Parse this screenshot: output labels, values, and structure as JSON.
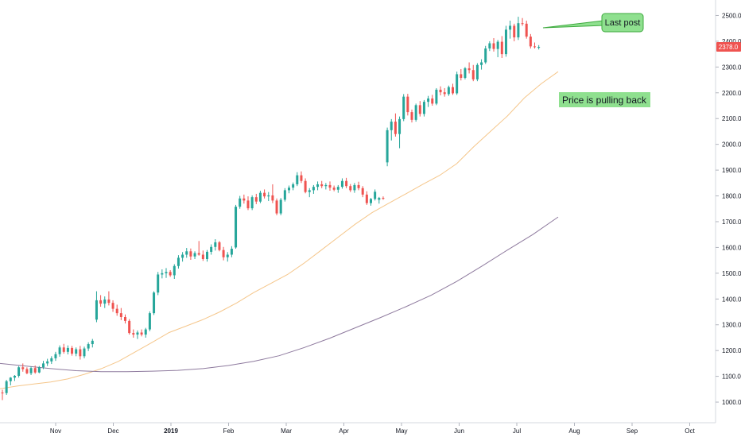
{
  "chart_data": {
    "type": "candlestick",
    "colors": {
      "up": "#26a69a",
      "down": "#ef5350",
      "ma_fast": "#f5c68a",
      "ma_slow": "#8e7a9e",
      "annotation_fill": "#8fe08f",
      "annotation_border": "#3faa3f",
      "price_badge": "#ef5350"
    },
    "ylim": [
      920,
      2560
    ],
    "y_ticks": [
      1000,
      1100,
      1200,
      1300,
      1400,
      1500,
      1600,
      1700,
      1800,
      1900,
      2000,
      2100,
      2200,
      2300,
      2400,
      2500
    ],
    "x_ticks": [
      "Nov",
      "Dec",
      "2019",
      "Feb",
      "Mar",
      "Apr",
      "May",
      "Jun",
      "Jul",
      "Aug",
      "Sep",
      "Oct"
    ],
    "current_price": "2378.0",
    "series": [
      {
        "kind": "candles",
        "x_start": "2018-10-18",
        "values": [
          [
            1037,
            1048,
            1008,
            1035
          ],
          [
            1035,
            1086,
            1028,
            1081
          ],
          [
            1081,
            1097,
            1065,
            1095
          ],
          [
            1095,
            1105,
            1082,
            1102
          ],
          [
            1102,
            1140,
            1095,
            1135
          ],
          [
            1135,
            1150,
            1118,
            1128
          ],
          [
            1128,
            1135,
            1108,
            1112
          ],
          [
            1112,
            1138,
            1105,
            1132
          ],
          [
            1132,
            1142,
            1110,
            1115
          ],
          [
            1115,
            1140,
            1112,
            1135
          ],
          [
            1135,
            1160,
            1128,
            1150
          ],
          [
            1150,
            1168,
            1140,
            1158
          ],
          [
            1158,
            1178,
            1148,
            1170
          ],
          [
            1170,
            1195,
            1160,
            1186
          ],
          [
            1186,
            1220,
            1176,
            1212
          ],
          [
            1212,
            1226,
            1188,
            1195
          ],
          [
            1195,
            1220,
            1185,
            1210
          ],
          [
            1210,
            1218,
            1180,
            1188
          ],
          [
            1188,
            1212,
            1178,
            1205
          ],
          [
            1205,
            1218,
            1165,
            1178
          ],
          [
            1178,
            1215,
            1170,
            1208
          ],
          [
            1208,
            1232,
            1198,
            1225
          ],
          [
            1225,
            1245,
            1212,
            1238
          ],
          [
            1320,
            1430,
            1310,
            1395
          ],
          [
            1395,
            1415,
            1370,
            1382
          ],
          [
            1382,
            1410,
            1365,
            1398
          ],
          [
            1398,
            1430,
            1375,
            1385
          ],
          [
            1385,
            1395,
            1350,
            1362
          ],
          [
            1362,
            1378,
            1335,
            1345
          ],
          [
            1345,
            1365,
            1318,
            1330
          ],
          [
            1330,
            1340,
            1305,
            1315
          ],
          [
            1315,
            1322,
            1262,
            1268
          ],
          [
            1268,
            1282,
            1250,
            1262
          ],
          [
            1262,
            1278,
            1245,
            1270
          ],
          [
            1270,
            1282,
            1255,
            1262
          ],
          [
            1262,
            1288,
            1250,
            1282
          ],
          [
            1282,
            1352,
            1275,
            1345
          ],
          [
            1345,
            1430,
            1338,
            1425
          ],
          [
            1425,
            1505,
            1415,
            1495
          ],
          [
            1495,
            1515,
            1480,
            1500
          ],
          [
            1500,
            1520,
            1482,
            1505
          ],
          [
            1505,
            1512,
            1486,
            1492
          ],
          [
            1492,
            1535,
            1478,
            1528
          ],
          [
            1528,
            1570,
            1518,
            1560
          ],
          [
            1560,
            1582,
            1545,
            1572
          ],
          [
            1572,
            1598,
            1560,
            1585
          ],
          [
            1585,
            1596,
            1552,
            1565
          ],
          [
            1565,
            1585,
            1555,
            1578
          ],
          [
            1578,
            1625,
            1568,
            1572
          ],
          [
            1572,
            1588,
            1548,
            1555
          ],
          [
            1555,
            1590,
            1545,
            1583
          ],
          [
            1583,
            1612,
            1572,
            1602
          ],
          [
            1602,
            1632,
            1588,
            1620
          ],
          [
            1620,
            1625,
            1585,
            1590
          ],
          [
            1590,
            1602,
            1550,
            1562
          ],
          [
            1562,
            1582,
            1545,
            1572
          ],
          [
            1572,
            1605,
            1562,
            1595
          ],
          [
            1600,
            1765,
            1595,
            1758
          ],
          [
            1758,
            1800,
            1750,
            1790
          ],
          [
            1790,
            1805,
            1770,
            1782
          ],
          [
            1782,
            1798,
            1745,
            1752
          ],
          [
            1752,
            1802,
            1745,
            1795
          ],
          [
            1795,
            1808,
            1768,
            1778
          ],
          [
            1778,
            1820,
            1772,
            1812
          ],
          [
            1812,
            1825,
            1790,
            1798
          ],
          [
            1798,
            1815,
            1780,
            1802
          ],
          [
            1802,
            1845,
            1772,
            1782
          ],
          [
            1782,
            1790,
            1725,
            1732
          ],
          [
            1732,
            1792,
            1725,
            1785
          ],
          [
            1785,
            1830,
            1778,
            1822
          ],
          [
            1822,
            1840,
            1810,
            1832
          ],
          [
            1832,
            1852,
            1822,
            1845
          ],
          [
            1845,
            1892,
            1838,
            1880
          ],
          [
            1880,
            1895,
            1850,
            1858
          ],
          [
            1858,
            1868,
            1810,
            1815
          ],
          [
            1815,
            1830,
            1795,
            1822
          ],
          [
            1822,
            1842,
            1808,
            1835
          ],
          [
            1835,
            1856,
            1822,
            1845
          ],
          [
            1845,
            1858,
            1830,
            1838
          ],
          [
            1838,
            1850,
            1825,
            1842
          ],
          [
            1842,
            1856,
            1820,
            1832
          ],
          [
            1832,
            1840,
            1818,
            1824
          ],
          [
            1824,
            1842,
            1812,
            1835
          ],
          [
            1835,
            1868,
            1828,
            1858
          ],
          [
            1858,
            1870,
            1830,
            1838
          ],
          [
            1838,
            1846,
            1815,
            1822
          ],
          [
            1822,
            1850,
            1812,
            1842
          ],
          [
            1842,
            1855,
            1822,
            1830
          ],
          [
            1830,
            1838,
            1795,
            1805
          ],
          [
            1805,
            1818,
            1765,
            1772
          ],
          [
            1772,
            1792,
            1762,
            1788
          ],
          [
            1788,
            1825,
            1782,
            1816
          ],
          [
            1785,
            1796,
            1770,
            1792
          ],
          [
            1792,
            1798,
            1785,
            1790
          ],
          [
            1930,
            2065,
            1915,
            2055
          ],
          [
            2055,
            2098,
            2015,
            2088
          ],
          [
            2088,
            2120,
            2030,
            2040
          ],
          [
            2040,
            2108,
            1985,
            2098
          ],
          [
            2098,
            2195,
            2090,
            2185
          ],
          [
            2185,
            2196,
            2112,
            2125
          ],
          [
            2125,
            2135,
            2085,
            2095
          ],
          [
            2095,
            2158,
            2088,
            2152
          ],
          [
            2152,
            2168,
            2108,
            2118
          ],
          [
            2118,
            2172,
            2108,
            2165
          ],
          [
            2165,
            2188,
            2145,
            2178
          ],
          [
            2178,
            2192,
            2150,
            2158
          ],
          [
            2158,
            2218,
            2152,
            2212
          ],
          [
            2212,
            2225,
            2190,
            2202
          ],
          [
            2202,
            2218,
            2185,
            2195
          ],
          [
            2195,
            2228,
            2188,
            2222
          ],
          [
            2222,
            2235,
            2192,
            2198
          ],
          [
            2198,
            2282,
            2192,
            2272
          ],
          [
            2272,
            2292,
            2248,
            2258
          ],
          [
            2258,
            2300,
            2252,
            2295
          ],
          [
            2295,
            2318,
            2275,
            2288
          ],
          [
            2288,
            2308,
            2245,
            2252
          ],
          [
            2252,
            2315,
            2245,
            2308
          ],
          [
            2308,
            2330,
            2290,
            2318
          ],
          [
            2318,
            2382,
            2312,
            2372
          ],
          [
            2372,
            2400,
            2362,
            2392
          ],
          [
            2392,
            2412,
            2360,
            2370
          ],
          [
            2370,
            2405,
            2338,
            2398
          ],
          [
            2398,
            2420,
            2335,
            2350
          ],
          [
            2350,
            2460,
            2340,
            2445
          ],
          [
            2445,
            2480,
            2410,
            2460
          ],
          [
            2460,
            2468,
            2400,
            2415
          ],
          [
            2415,
            2495,
            2405,
            2470
          ],
          [
            2470,
            2490,
            2460,
            2468
          ],
          [
            2468,
            2480,
            2410,
            2418
          ],
          [
            2418,
            2428,
            2372,
            2380
          ],
          [
            2380,
            2395,
            2372,
            2378
          ],
          [
            2378,
            2385,
            2368,
            2378
          ]
        ]
      },
      {
        "kind": "ma_fast",
        "values": [
          1052,
          1062,
          1070,
          1078,
          1090,
          1108,
          1130,
          1158,
          1195,
          1232,
          1270,
          1295,
          1320,
          1350,
          1385,
          1425,
          1460,
          1495,
          1540,
          1590,
          1640,
          1690,
          1735,
          1772,
          1808,
          1845,
          1880,
          1925,
          1990,
          2050,
          2110,
          2180,
          2235,
          2282
        ]
      },
      {
        "kind": "ma_slow",
        "values": [
          1150,
          1140,
          1130,
          1122,
          1118,
          1118,
          1120,
          1123,
          1130,
          1142,
          1158,
          1180,
          1212,
          1248,
          1288,
          1328,
          1370,
          1415,
          1468,
          1528,
          1590,
          1650,
          1718
        ]
      }
    ],
    "annotations": [
      {
        "text": "Last post"
      },
      {
        "text": "Price is pulling back"
      }
    ]
  }
}
